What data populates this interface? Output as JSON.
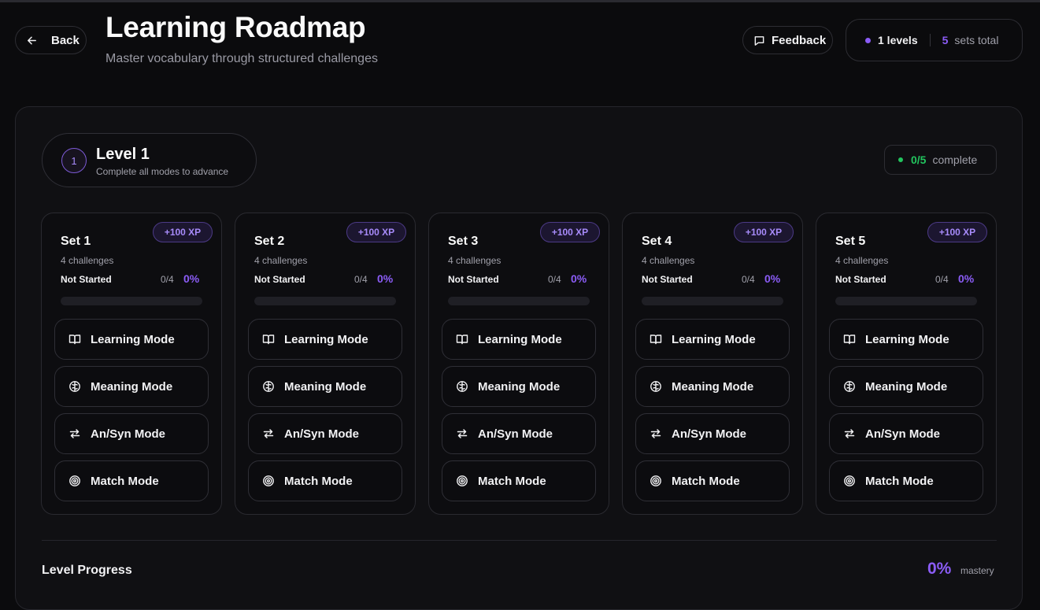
{
  "header": {
    "back_label": "Back",
    "title": "Learning Roadmap",
    "subtitle": "Master vocabulary through structured challenges",
    "feedback_label": "Feedback",
    "stats": {
      "levels": "1 levels",
      "sets_count": "5",
      "sets_label": "sets total"
    }
  },
  "level": {
    "number": "1",
    "name": "Level 1",
    "hint": "Complete all modes to advance",
    "complete_count": "0/5",
    "complete_label": "complete",
    "sets": [
      {
        "title": "Set 1",
        "xp": "+100 XP",
        "challenges": "4 challenges",
        "status": "Not Started",
        "count": "0/4",
        "percent": "0%",
        "progress": 0,
        "modes": [
          "Learning Mode",
          "Meaning Mode",
          "An/Syn Mode",
          "Match Mode"
        ]
      },
      {
        "title": "Set 2",
        "xp": "+100 XP",
        "challenges": "4 challenges",
        "status": "Not Started",
        "count": "0/4",
        "percent": "0%",
        "progress": 0,
        "modes": [
          "Learning Mode",
          "Meaning Mode",
          "An/Syn Mode",
          "Match Mode"
        ]
      },
      {
        "title": "Set 3",
        "xp": "+100 XP",
        "challenges": "4 challenges",
        "status": "Not Started",
        "count": "0/4",
        "percent": "0%",
        "progress": 0,
        "modes": [
          "Learning Mode",
          "Meaning Mode",
          "An/Syn Mode",
          "Match Mode"
        ]
      },
      {
        "title": "Set 4",
        "xp": "+100 XP",
        "challenges": "4 challenges",
        "status": "Not Started",
        "count": "0/4",
        "percent": "0%",
        "progress": 0,
        "modes": [
          "Learning Mode",
          "Meaning Mode",
          "An/Syn Mode",
          "Match Mode"
        ]
      },
      {
        "title": "Set 5",
        "xp": "+100 XP",
        "challenges": "4 challenges",
        "status": "Not Started",
        "count": "0/4",
        "percent": "0%",
        "progress": 0,
        "modes": [
          "Learning Mode",
          "Meaning Mode",
          "An/Syn Mode",
          "Match Mode"
        ]
      }
    ],
    "mode_icons": [
      "book-icon",
      "brain-icon",
      "swap-arrows-icon",
      "target-icon"
    ],
    "progress_title": "Level Progress",
    "mastery_percent": "0%",
    "mastery_label": "mastery"
  },
  "colors": {
    "accent": "#8b5cf6",
    "success": "#22c55e",
    "background": "#0b0b0d"
  }
}
